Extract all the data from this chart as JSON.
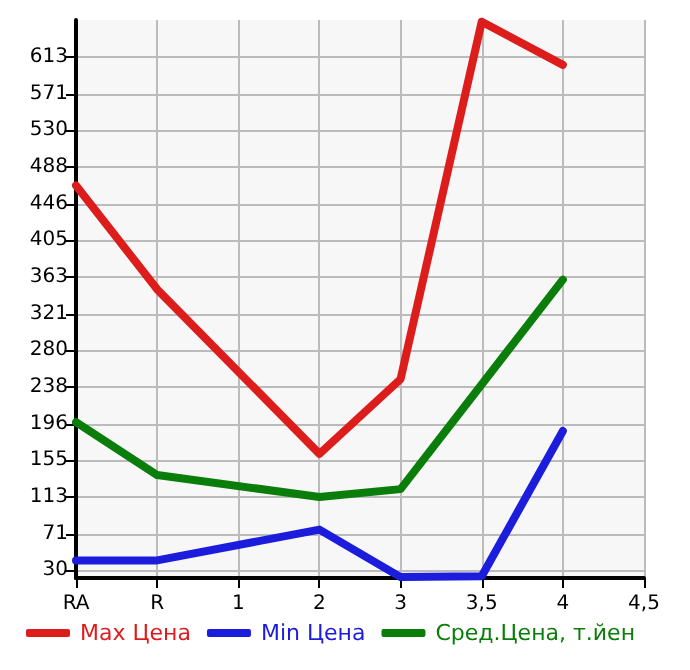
{
  "chart_data": {
    "type": "line",
    "categories": [
      "RA",
      "R",
      "1",
      "2",
      "3",
      "3,5",
      "4",
      "4,5"
    ],
    "series": [
      {
        "name": "Max Цена",
        "color": "#dd1c1c",
        "values": [
          467,
          349,
          null,
          162,
          247,
          653,
          604,
          null
        ]
      },
      {
        "name": "Min Цена",
        "color": "#1c1cdd",
        "values": [
          41,
          41,
          null,
          76,
          22,
          23,
          188,
          null
        ]
      },
      {
        "name": "Сред.Цена, т.йен",
        "color": "#0a7d0a",
        "values": [
          198,
          138,
          null,
          113,
          122,
          null,
          360,
          null
        ]
      }
    ],
    "ylim": [
      21,
      655
    ],
    "yticks": [
      30,
      71,
      113,
      155,
      196,
      238,
      280,
      321,
      363,
      405,
      446,
      488,
      530,
      571,
      613
    ],
    "grid": true,
    "legend": "bottom left",
    "marker": "none",
    "line_style": "solid"
  }
}
